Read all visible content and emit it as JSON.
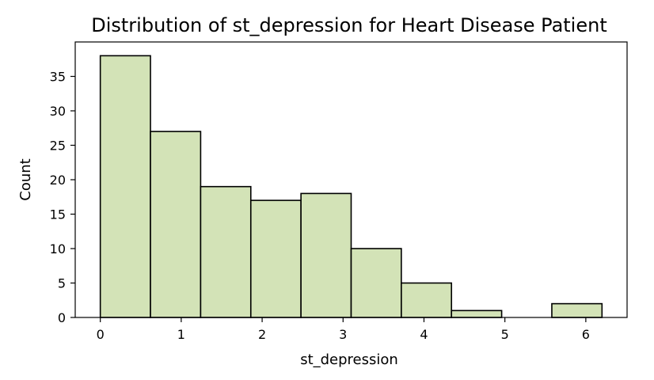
{
  "chart_data": {
    "type": "bar",
    "title": "Distribution of st_depression for Heart Disease Patient",
    "xlabel": "st_depression",
    "ylabel": "Count",
    "bins": [
      {
        "x0": 0.0,
        "x1": 0.62,
        "count": 38
      },
      {
        "x0": 0.62,
        "x1": 1.24,
        "count": 27
      },
      {
        "x0": 1.24,
        "x1": 1.86,
        "count": 19
      },
      {
        "x0": 1.86,
        "x1": 2.48,
        "count": 17
      },
      {
        "x0": 2.48,
        "x1": 3.1,
        "count": 18
      },
      {
        "x0": 3.1,
        "x1": 3.72,
        "count": 10
      },
      {
        "x0": 3.72,
        "x1": 4.34,
        "count": 5
      },
      {
        "x0": 4.34,
        "x1": 4.96,
        "count": 1
      },
      {
        "x0": 4.96,
        "x1": 5.58,
        "count": 0
      },
      {
        "x0": 5.58,
        "x1": 6.2,
        "count": 2
      }
    ],
    "xticks": [
      0,
      1,
      2,
      3,
      4,
      5,
      6
    ],
    "yticks": [
      0,
      5,
      10,
      15,
      20,
      25,
      30,
      35
    ],
    "xlim": [
      -0.31,
      6.51
    ],
    "ylim": [
      0,
      40
    ],
    "bar_color": "#d3e3b7",
    "edge_color": "#000000",
    "grid": false
  }
}
